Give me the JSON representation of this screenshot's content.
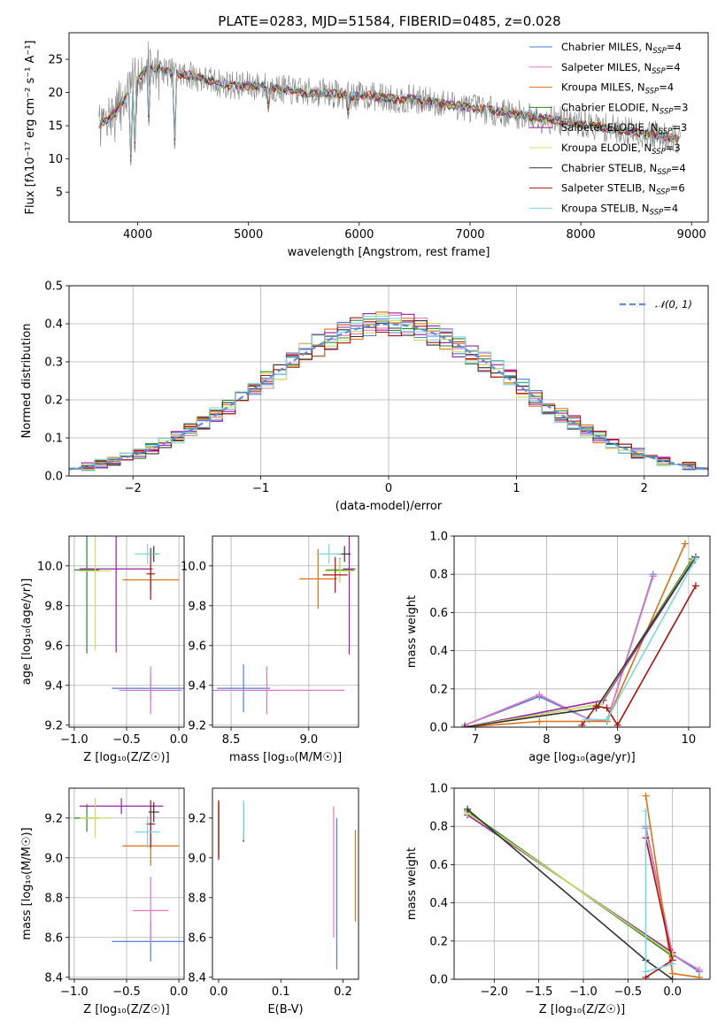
{
  "chart_data": [
    {
      "type": "line",
      "title": "PLATE=0283, MJD=51584, FIBERID=0485, z=0.028",
      "xlabel": "wavelength [Angstrom, rest frame]",
      "ylabel": "Flux [fλ10⁻¹⁷ erg cm⁻² s⁻¹ A⁻¹]",
      "xlim": [
        3380,
        9150
      ],
      "ylim": [
        0.5,
        29
      ],
      "xticks": [
        "4000",
        "5000",
        "6000",
        "7000",
        "8000",
        "9000"
      ],
      "yticks": [
        "5",
        "10",
        "15",
        "20",
        "25"
      ],
      "legend_position": "top-right",
      "data_spectrum": {
        "x": [
          3650,
          3800,
          4000,
          4100,
          4300,
          4500,
          4700,
          4900,
          5100,
          5300,
          5500,
          5700,
          5900,
          6100,
          6300,
          6500,
          6700,
          6900,
          7100,
          7300,
          7500,
          7700,
          7900,
          8100,
          8300,
          8500,
          8700,
          8900
        ],
        "y": [
          15,
          17,
          22,
          24,
          23,
          22.5,
          21.5,
          21,
          21,
          20.5,
          20,
          20,
          19.5,
          19.5,
          19,
          19,
          18.5,
          18,
          17.5,
          17,
          16.5,
          16,
          15.5,
          15,
          14.5,
          14,
          13.5,
          13
        ]
      },
      "series": [
        {
          "name": "Chabrier MILES",
          "nssp": "4",
          "color": "#4f7fd9"
        },
        {
          "name": "Salpeter MILES",
          "nssp": "4",
          "color": "#e377c2"
        },
        {
          "name": "Kroupa MILES",
          "nssp": "4",
          "color": "#e07010"
        },
        {
          "name": "Chabrier ELODIE",
          "nssp": "3",
          "color": "#2a8a2a"
        },
        {
          "name": "Salpeter ELODIE",
          "nssp": "3",
          "color": "#9b1fa8"
        },
        {
          "name": "Kroupa ELODIE",
          "nssp": "3",
          "color": "#c8e05a"
        },
        {
          "name": "Chabrier STELIB",
          "nssp": "4",
          "color": "#333333"
        },
        {
          "name": "Salpeter STELIB",
          "nssp": "6",
          "color": "#b01010"
        },
        {
          "name": "Kroupa STELIB",
          "nssp": "4",
          "color": "#7ad6e0"
        }
      ]
    },
    {
      "type": "line",
      "xlabel": "(data-model)/error",
      "ylabel": "Normed distribution",
      "xlim": [
        -2.5,
        2.5
      ],
      "ylim": [
        0,
        0.5
      ],
      "xticks": [
        "−2",
        "−1",
        "0",
        "1",
        "2"
      ],
      "yticks": [
        "0.0",
        "0.1",
        "0.2",
        "0.3",
        "0.4",
        "0.5"
      ],
      "grid": true,
      "legend_position": "top-right",
      "reference_curve": {
        "name": "𝒩(0, 1)",
        "mean": 0,
        "sigma": 1
      },
      "bin_width": 0.1
    },
    {
      "type": "scatter",
      "xlabel": "Z [log₁₀(Z/Z☉)]",
      "ylabel": "age  [log₁₀(age/yr)]",
      "xlim": [
        -1.05,
        0.05
      ],
      "ylim": [
        9.19,
        10.15
      ],
      "xticks": [
        "−1.0",
        "−0.5",
        "0.0"
      ],
      "yticks": [
        "9.2",
        "9.4",
        "9.6",
        "9.8",
        "10.0"
      ],
      "grid": true,
      "points": [
        {
          "series": "Chabrier MILES",
          "x": -0.27,
          "y": 9.385,
          "xerr": 0.37,
          "yerr": 0.06
        },
        {
          "series": "Salpeter MILES",
          "x": -0.27,
          "y": 9.375,
          "xerr": 0.3,
          "yerr": 0.12
        },
        {
          "series": "Kroupa MILES",
          "x": -0.27,
          "y": 9.93,
          "xerr": 0.27,
          "yerr": 0.05
        },
        {
          "series": "Chabrier ELODIE",
          "x": -0.88,
          "y": 9.98,
          "xerr": 0.12,
          "yerr": 0.42
        },
        {
          "series": "Salpeter ELODIE",
          "x": -0.6,
          "y": 9.985,
          "xerr": 0.35,
          "yerr": 0.42
        },
        {
          "series": "Kroupa ELODIE",
          "x": -0.8,
          "y": 9.975,
          "xerr": 0.15,
          "yerr": 0.4
        },
        {
          "series": "Chabrier STELIB",
          "x": -0.24,
          "y": 10.06,
          "xerr": 0.05,
          "yerr": 0.04
        },
        {
          "series": "Salpeter STELIB",
          "x": -0.27,
          "y": 9.96,
          "xerr": 0.04,
          "yerr": 0.13
        },
        {
          "series": "Kroupa STELIB",
          "x": -0.3,
          "y": 10.06,
          "xerr": 0.12,
          "yerr": 0.05
        }
      ]
    },
    {
      "type": "scatter",
      "xlabel": "mass [log₁₀(M/M☉)]",
      "ylabel": "",
      "xlim": [
        8.38,
        9.32
      ],
      "ylim": [
        9.19,
        10.15
      ],
      "xticks": [
        "8.5",
        "9.0"
      ],
      "yticks": [
        "9.2",
        "9.4",
        "9.6",
        "9.8",
        "10.0"
      ],
      "grid": true,
      "points": [
        {
          "series": "Chabrier MILES",
          "x": 8.58,
          "y": 9.385,
          "xerr": 0.17,
          "yerr": 0.12
        },
        {
          "series": "Salpeter MILES",
          "x": 8.73,
          "y": 9.375,
          "xerr": 0.5,
          "yerr": 0.12
        },
        {
          "series": "Kroupa MILES",
          "x": 9.06,
          "y": 9.935,
          "xerr": 0.12,
          "yerr": 0.15
        },
        {
          "series": "Chabrier ELODIE",
          "x": 9.2,
          "y": 9.98,
          "xerr": 0.09,
          "yerr": 0.06
        },
        {
          "series": "Salpeter ELODIE",
          "x": 9.26,
          "y": 9.985,
          "xerr": 0.04,
          "yerr": 0.43
        },
        {
          "series": "Kroupa ELODIE",
          "x": 9.2,
          "y": 9.975,
          "xerr": 0.1,
          "yerr": 0.06
        },
        {
          "series": "Chabrier STELIB",
          "x": 9.23,
          "y": 10.06,
          "xerr": 0.04,
          "yerr": 0.04
        },
        {
          "series": "Salpeter STELIB",
          "x": 9.17,
          "y": 9.955,
          "xerr": 0.08,
          "yerr": 0.09
        },
        {
          "series": "Kroupa STELIB",
          "x": 9.13,
          "y": 10.06,
          "xerr": 0.08,
          "yerr": 0.05
        }
      ]
    },
    {
      "type": "line",
      "xlabel": "age  [log₁₀(age/yr)]",
      "ylabel": "mass weight",
      "xlim": [
        6.7,
        10.3
      ],
      "ylim": [
        0,
        1
      ],
      "xticks": [
        "7",
        "8",
        "9",
        "10"
      ],
      "yticks": [
        "0.0",
        "0.2",
        "0.4",
        "0.6",
        "0.8",
        "1.0"
      ],
      "grid": true,
      "series": [
        {
          "name": "Chabrier MILES",
          "x": [
            6.85,
            7.9,
            8.6,
            8.85,
            9.5
          ],
          "y": [
            0.01,
            0.16,
            0.04,
            0.03,
            0.8
          ]
        },
        {
          "name": "Salpeter MILES",
          "x": [
            6.85,
            7.9,
            8.6,
            8.85,
            9.5
          ],
          "y": [
            0.01,
            0.17,
            0.04,
            0.03,
            0.79
          ]
        },
        {
          "name": "Kroupa MILES",
          "x": [
            6.85,
            7.9,
            8.85,
            9.95
          ],
          "y": [
            0.0,
            0.03,
            0.03,
            0.96
          ]
        },
        {
          "name": "Chabrier ELODIE",
          "x": [
            6.85,
            8.75,
            10.05
          ],
          "y": [
            0.0,
            0.12,
            0.88
          ]
        },
        {
          "name": "Salpeter ELODIE",
          "x": [
            6.85,
            8.8,
            10.05
          ],
          "y": [
            0.0,
            0.14,
            0.86
          ]
        },
        {
          "name": "Kroupa ELODIE",
          "x": [
            6.85,
            8.75,
            10.05
          ],
          "y": [
            0.0,
            0.12,
            0.87
          ]
        },
        {
          "name": "Chabrier STELIB",
          "x": [
            6.85,
            8.7,
            10.1
          ],
          "y": [
            0.0,
            0.1,
            0.89
          ]
        },
        {
          "name": "Salpeter STELIB",
          "x": [
            8.5,
            8.7,
            8.85,
            9.0,
            10.1
          ],
          "y": [
            0.01,
            0.11,
            0.1,
            0.01,
            0.74
          ]
        },
        {
          "name": "Kroupa STELIB",
          "x": [
            8.55,
            8.85,
            10.1
          ],
          "y": [
            0.04,
            0.04,
            0.88
          ]
        }
      ]
    },
    {
      "type": "scatter",
      "xlabel": "Z [log₁₀(Z/Z☉)]",
      "ylabel": "mass [log₁₀(M/M☉)]",
      "xlim": [
        -1.05,
        0.05
      ],
      "ylim": [
        8.39,
        9.35
      ],
      "xticks": [
        "−1.0",
        "−0.5",
        "0.0"
      ],
      "yticks": [
        "8.4",
        "8.6",
        "8.8",
        "9.0",
        "9.2"
      ],
      "grid": true,
      "points": [
        {
          "series": "Chabrier MILES",
          "x": -0.27,
          "y": 8.58,
          "xerr": 0.37,
          "yerr": 0.1
        },
        {
          "series": "Salpeter MILES",
          "x": -0.27,
          "y": 8.735,
          "xerr": 0.17,
          "yerr": 0.17
        },
        {
          "series": "Kroupa MILES",
          "x": -0.27,
          "y": 9.06,
          "xerr": 0.27,
          "yerr": 0.1
        },
        {
          "series": "Chabrier ELODIE",
          "x": -0.88,
          "y": 9.2,
          "xerr": 0.12,
          "yerr": 0.07
        },
        {
          "series": "Salpeter ELODIE",
          "x": -0.55,
          "y": 9.26,
          "xerr": 0.4,
          "yerr": 0.04
        },
        {
          "series": "Kroupa ELODIE",
          "x": -0.8,
          "y": 9.2,
          "xerr": 0.15,
          "yerr": 0.1
        },
        {
          "series": "Chabrier STELIB",
          "x": -0.24,
          "y": 9.23,
          "xerr": 0.05,
          "yerr": 0.05
        },
        {
          "series": "Salpeter STELIB",
          "x": -0.27,
          "y": 9.17,
          "xerr": 0.04,
          "yerr": 0.12
        },
        {
          "series": "Kroupa STELIB",
          "x": -0.3,
          "y": 9.13,
          "xerr": 0.12,
          "yerr": 0.08
        }
      ]
    },
    {
      "type": "scatter",
      "xlabel": "E(B-V)",
      "ylabel": "",
      "xlim": [
        -0.01,
        0.225
      ],
      "ylim": [
        8.39,
        9.35
      ],
      "xticks": [
        "0.0",
        "0.1",
        "0.2"
      ],
      "yticks": [
        "8.4",
        "8.6",
        "8.8",
        "9.0",
        "9.2"
      ],
      "points": [
        {
          "series": "Chabrier MILES",
          "x": 0.19,
          "y": 8.82,
          "yerr": 0.38
        },
        {
          "series": "Salpeter MILES",
          "x": 0.185,
          "y": 8.93,
          "yerr": 0.33
        },
        {
          "series": "Kroupa MILES",
          "x": 0.22,
          "y": 8.91,
          "yerr": 0.23
        },
        {
          "series": "Chabrier ELODIE",
          "x": 0.0,
          "y": 9.14,
          "yerr": 0.14
        },
        {
          "series": "Salpeter ELODIE",
          "x": 0.0,
          "y": 9.15,
          "yerr": 0.13
        },
        {
          "series": "Kroupa ELODIE",
          "x": 0.0,
          "y": 9.14,
          "yerr": 0.14
        },
        {
          "series": "Chabrier STELIB",
          "x": 0.04,
          "y": 9.18,
          "yerr": 0.1
        },
        {
          "series": "Salpeter STELIB",
          "x": 0.0,
          "y": 9.14,
          "yerr": 0.15
        },
        {
          "series": "Kroupa STELIB",
          "x": 0.04,
          "y": 9.19,
          "yerr": 0.1
        }
      ]
    },
    {
      "type": "line",
      "xlabel": "Z [log₁₀(Z/Z☉)]",
      "ylabel": "mass weight",
      "xlim": [
        -2.45,
        0.42
      ],
      "ylim": [
        0,
        1
      ],
      "xticks": [
        "−2.0",
        "−1.5",
        "−1.0",
        "−0.5",
        "0.0"
      ],
      "yticks": [
        "0.0",
        "0.2",
        "0.4",
        "0.6",
        "0.8",
        "1.0"
      ],
      "grid": true,
      "series": [
        {
          "name": "Chabrier MILES",
          "x": [
            -0.3,
            0.0,
            0.3
          ],
          "y": [
            0.8,
            0.13,
            0.04
          ]
        },
        {
          "name": "Salpeter MILES",
          "x": [
            -0.3,
            0.0,
            0.3
          ],
          "y": [
            0.79,
            0.13,
            0.05
          ]
        },
        {
          "name": "Kroupa MILES",
          "x": [
            -0.3,
            0.0,
            0.3
          ],
          "y": [
            0.96,
            0.03,
            0.01
          ]
        },
        {
          "name": "Chabrier ELODIE",
          "x": [
            -2.3,
            0.0
          ],
          "y": [
            0.88,
            0.12
          ]
        },
        {
          "name": "Salpeter ELODIE",
          "x": [
            -2.3,
            0.0
          ],
          "y": [
            0.86,
            0.14
          ]
        },
        {
          "name": "Kroupa ELODIE",
          "x": [
            -2.3,
            0.0
          ],
          "y": [
            0.87,
            0.13
          ]
        },
        {
          "name": "Chabrier STELIB",
          "x": [
            -2.3,
            -0.3,
            0.0
          ],
          "y": [
            0.89,
            0.1,
            0.0
          ]
        },
        {
          "name": "Salpeter STELIB",
          "x": [
            -0.3,
            0.0,
            -0.3
          ],
          "y": [
            0.74,
            0.1,
            0.01
          ]
        },
        {
          "name": "Kroupa STELIB",
          "x": [
            -0.3,
            -0.3,
            0.0
          ],
          "y": [
            0.88,
            0.04,
            0.08
          ]
        }
      ]
    }
  ]
}
